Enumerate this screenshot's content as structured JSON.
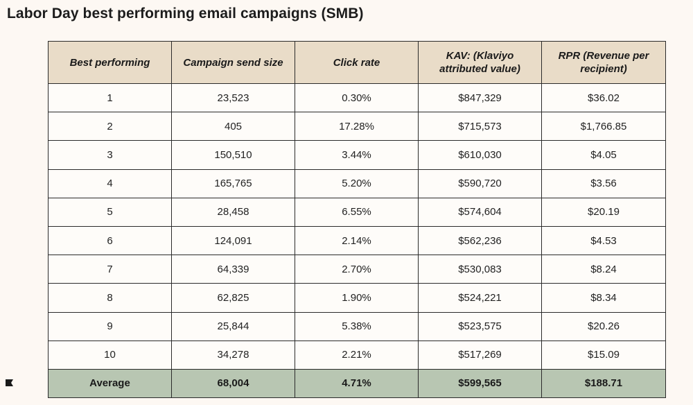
{
  "title": "Labor Day best performing email campaigns (SMB)",
  "table": {
    "headers": [
      "Best performing",
      "Campaign send size",
      "Click rate",
      "KAV: (Klaviyo attributed value)",
      "RPR (Revenue per recipient)"
    ],
    "rows": [
      [
        "1",
        "23,523",
        "0.30%",
        "$847,329",
        "$36.02"
      ],
      [
        "2",
        "405",
        "17.28%",
        "$715,573",
        "$1,766.85"
      ],
      [
        "3",
        "150,510",
        "3.44%",
        "$610,030",
        "$4.05"
      ],
      [
        "4",
        "165,765",
        "5.20%",
        "$590,720",
        "$3.56"
      ],
      [
        "5",
        "28,458",
        "6.55%",
        "$574,604",
        "$20.19"
      ],
      [
        "6",
        "124,091",
        "2.14%",
        "$562,236",
        "$4.53"
      ],
      [
        "7",
        "64,339",
        "2.70%",
        "$530,083",
        "$8.24"
      ],
      [
        "8",
        "62,825",
        "1.90%",
        "$524,221",
        "$8.34"
      ],
      [
        "9",
        "25,844",
        "5.38%",
        "$523,575",
        "$20.26"
      ],
      [
        "10",
        "34,278",
        "2.21%",
        "$517,269",
        "$15.09"
      ]
    ],
    "average": [
      "Average",
      "68,004",
      "4.71%",
      "$599,565",
      "$188.71"
    ]
  },
  "colors": {
    "background": "#fdf8f3",
    "header_fill": "#e9dcc8",
    "average_fill": "#b8c6b2",
    "border": "#2a2a2a"
  },
  "icons": {
    "corner_marker": "flag-icon"
  }
}
